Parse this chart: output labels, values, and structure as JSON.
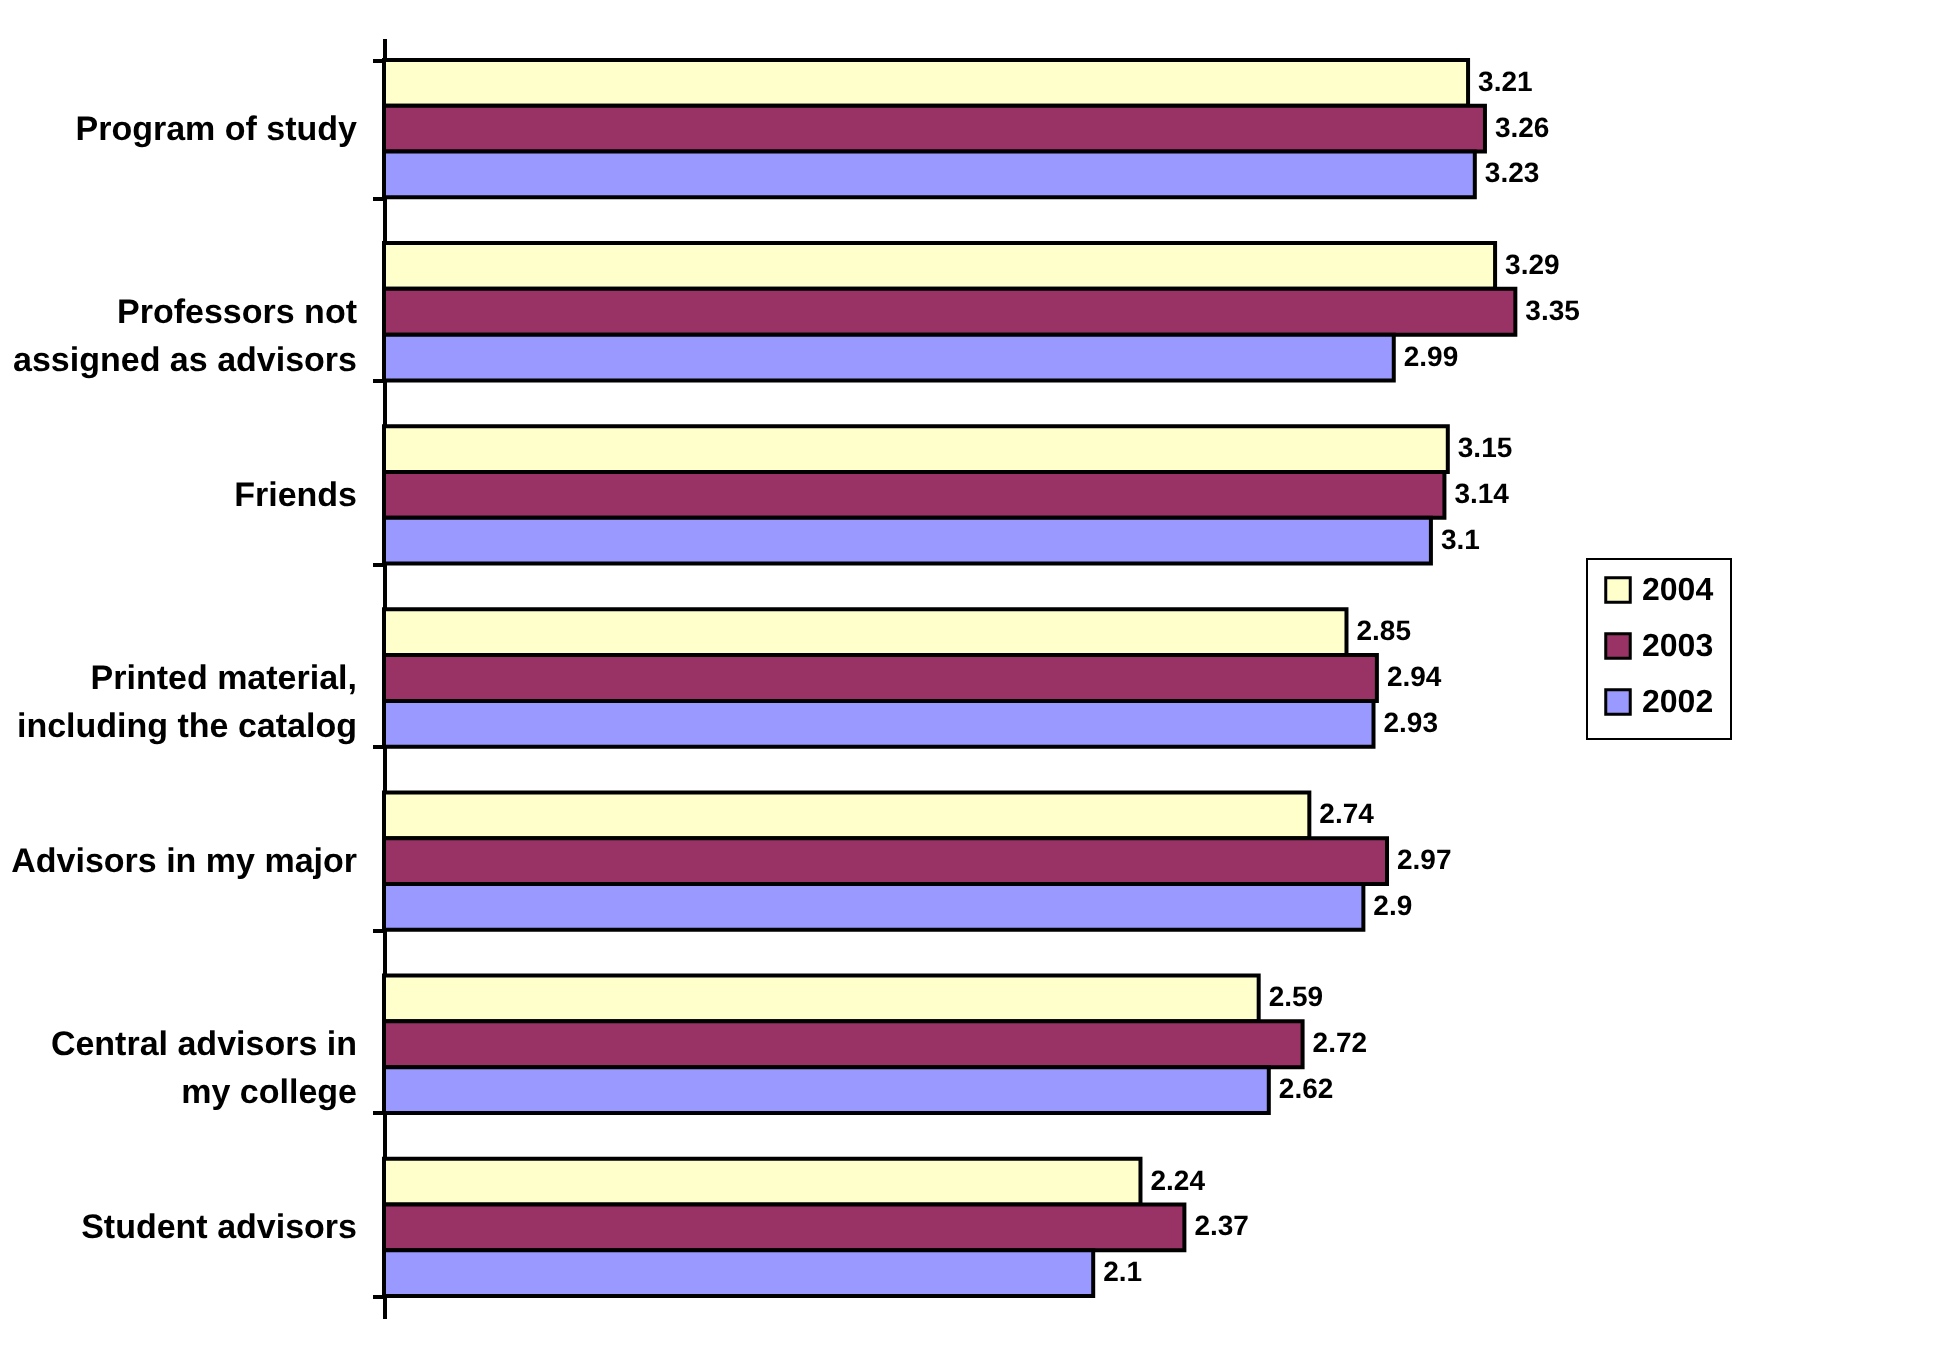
{
  "chart_data": {
    "type": "bar",
    "orientation": "horizontal",
    "categories": [
      "Program of study",
      "Professors not assigned as advisors",
      "Friends",
      "Printed material, including the catalog",
      "Advisors in my major",
      "Central advisors in my college",
      "Student advisors"
    ],
    "series": [
      {
        "name": "2004",
        "color": "#ffffcc",
        "values": [
          3.21,
          3.29,
          3.15,
          2.85,
          2.74,
          2.59,
          2.24
        ]
      },
      {
        "name": "2003",
        "color": "#993366",
        "values": [
          3.26,
          3.35,
          3.14,
          2.94,
          2.97,
          2.72,
          2.37
        ]
      },
      {
        "name": "2002",
        "color": "#9999ff",
        "values": [
          3.23,
          2.99,
          3.1,
          2.93,
          2.9,
          2.62,
          2.1
        ]
      }
    ],
    "data_labels": true,
    "legend": "right",
    "grid": false,
    "tick_labels": "y"
  }
}
